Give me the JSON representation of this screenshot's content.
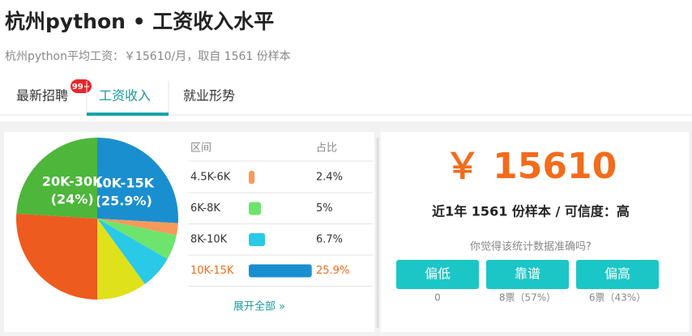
{
  "header": {
    "title": "杭州python • 工资收入水平",
    "subtitle": "杭州python平均工资：￥15610/月，取自 1561 份样本"
  },
  "tabs": [
    {
      "label": "最新招聘",
      "badge": "99+"
    },
    {
      "label": "工资收入"
    },
    {
      "label": "就业形势"
    }
  ],
  "chart_data": {
    "type": "pie",
    "categories": [
      "10K-15K",
      "4.5K-6K",
      "6K-8K",
      "8K-10K",
      null,
      null,
      "20K-30K"
    ],
    "values": [
      25.9,
      2.4,
      5,
      6.7,
      10,
      26,
      24
    ],
    "value_labels": [
      "25.9%",
      "2.4%",
      "5%",
      "6.7%",
      null,
      null,
      "24%"
    ],
    "pie_value_labels": [
      "(25.9%)",
      null,
      null,
      null,
      null,
      null,
      "(24%)"
    ],
    "colors": [
      "#1a8fcf",
      "#f7995a",
      "#6de46e",
      "#2ac9e8",
      "#dfe11b",
      "#ee5b1f",
      "#4db63b"
    ]
  },
  "table": {
    "columns": [
      "区间",
      "占比"
    ],
    "more": "展开全部 »"
  },
  "summary": {
    "salary": "￥ 15610",
    "sample": "近1年 1561 份样本 / 可信度：高",
    "question": "你觉得该统计数据准确吗?",
    "votes": [
      {
        "label": "偏低",
        "count": "0"
      },
      {
        "label": "靠谱",
        "count": "8票（57%）"
      },
      {
        "label": "偏高",
        "count": "6票（43%）"
      }
    ]
  }
}
